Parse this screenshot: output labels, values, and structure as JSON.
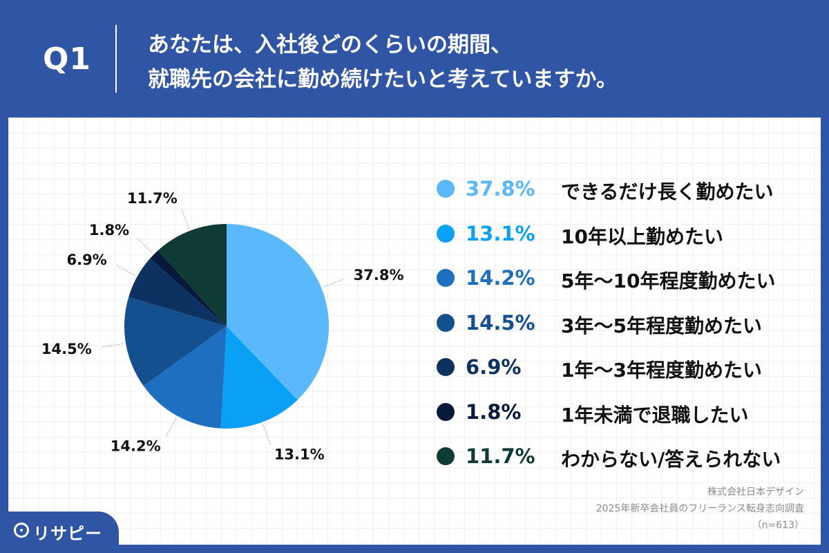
{
  "header": {
    "question": "Q1",
    "title_line1": "あなたは、入社後どのくらいの期間、",
    "title_line2": "就職先の会社に勤め続けたいと考えていますか。"
  },
  "chart_data": {
    "type": "pie",
    "title": "",
    "start_angle_deg": 0,
    "direction": "clockwise",
    "legend_position": "right",
    "slices": [
      {
        "label": "できるだけ長く勤めたい",
        "value": 37.8,
        "display": "37.8%",
        "color": "#5ab8fb"
      },
      {
        "label": "10年以上勤めたい",
        "value": 13.1,
        "display": "13.1%",
        "color": "#0aa0f3"
      },
      {
        "label": "5年〜10年程度勤めたい",
        "value": 14.2,
        "display": "14.2%",
        "color": "#1f6fc0"
      },
      {
        "label": "3年〜5年程度勤めたい",
        "value": 14.5,
        "display": "14.5%",
        "color": "#14508f"
      },
      {
        "label": "1年〜3年程度勤めたい",
        "value": 6.9,
        "display": "6.9%",
        "color": "#0d3261"
      },
      {
        "label": "1年未満で退職したい",
        "value": 1.8,
        "display": "1.8%",
        "color": "#081a3c"
      },
      {
        "label": "わからない/答えられない",
        "value": 11.7,
        "display": "11.7%",
        "color": "#0f3a36"
      }
    ]
  },
  "source": {
    "line1": "株式会社日本デザイン",
    "line2": "2025年新卒会社員のフリーランス転身志向調査",
    "line3": "（n=613）"
  },
  "logo": {
    "text": "リサピー",
    "icon": "pin-icon"
  }
}
